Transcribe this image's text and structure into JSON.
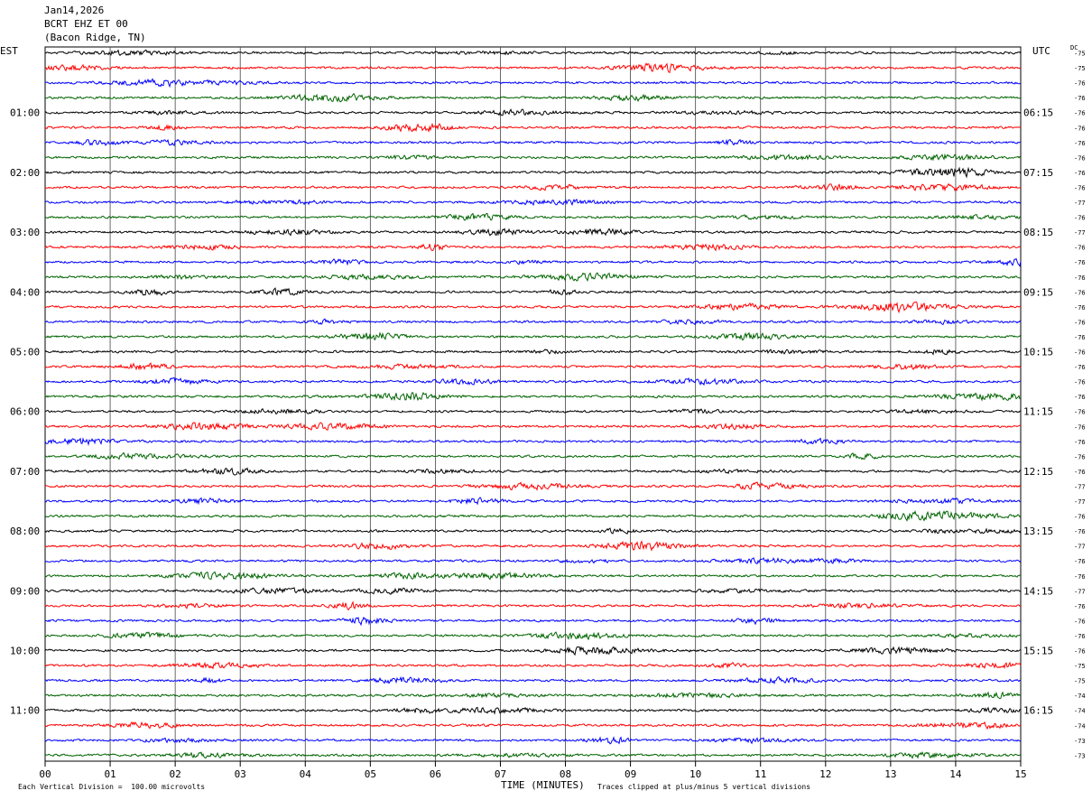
{
  "header": {
    "date": "Jan14,2026",
    "station": "BCRT EHZ ET 00",
    "location": "(Bacon Ridge, TN)"
  },
  "left_zone": "EST",
  "right_zone": "UTC",
  "dc_label": "DC",
  "left_hours": [
    "01:00",
    "02:00",
    "03:00",
    "04:00",
    "05:00",
    "06:00",
    "07:00",
    "08:00",
    "09:00",
    "10:00",
    "11:00"
  ],
  "right_hours": [
    "06:15",
    "07:15",
    "08:15",
    "09:15",
    "10:15",
    "11:15",
    "12:15",
    "13:15",
    "14:15",
    "15:15",
    "16:15"
  ],
  "minute_labels": [
    "00",
    "01",
    "02",
    "03",
    "04",
    "05",
    "06",
    "07",
    "08",
    "09",
    "10",
    "11",
    "12",
    "13",
    "14",
    "15"
  ],
  "footer": {
    "scale_note": "Each Vertical Division =  100.00 microvolts",
    "axis_title": "TIME (MINUTES)",
    "clip_note": "Traces clipped at plus/minus 5 vertical divisions"
  },
  "colors": {
    "cycle": [
      "#000000",
      "#ff0000",
      "#0000ff",
      "#006400"
    ]
  },
  "chart_data": {
    "type": "line",
    "title": "BCRT EHZ ET 00",
    "xlabel": "TIME (MINUTES)",
    "xlim": [
      0,
      15
    ],
    "trace_count": 48,
    "traces_per_hour": 4,
    "minutes_per_trace": 15,
    "dc_offsets": [
      -75,
      -75,
      -76,
      -76,
      -76,
      -76,
      -76,
      -76,
      -76,
      -76,
      -77,
      -76,
      -77,
      -76,
      -76,
      -76,
      -76,
      -76,
      -76,
      -76,
      -76,
      -76,
      -76,
      -76,
      -76,
      -76,
      -76,
      -76,
      -76,
      -77,
      -77,
      -76,
      -76,
      -77,
      -76,
      -76,
      -77,
      -76,
      -76,
      -76,
      -76,
      -75,
      -75,
      -74,
      -74,
      -74,
      -73,
      -73
    ]
  }
}
